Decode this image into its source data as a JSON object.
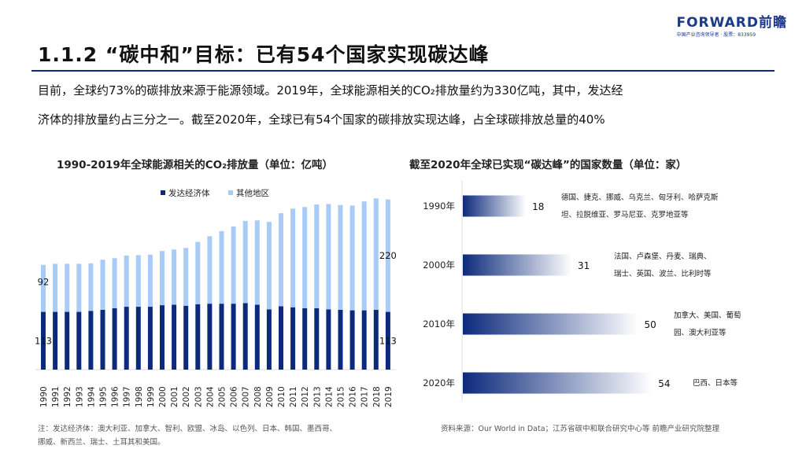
{
  "header": {
    "title": "1.1.2 “碳中和”目标：已有54个国家实现碳达峰",
    "logo_brand": "FORWARD前瞻",
    "logo_sub": "中国产业咨询领导者 · 股票：833959"
  },
  "intro": {
    "line1": "目前，全球约73%的碳排放来源于能源领域。2019年，全球能源相关的CO₂排放量约为330亿吨，其中，发达经",
    "line2": "济体的排放量约占三分之一。截至2020年，全球已有54个国家的碳排放实现达峰，占全球碳排放总量的40%"
  },
  "chart_data": [
    {
      "type": "bar",
      "stacked": true,
      "title": "1990-2019年全球能源相关的CO₂排放量（单位：亿吨）",
      "legend_position": "top",
      "categories": [
        "1990",
        "1991",
        "1992",
        "1993",
        "1994",
        "1995",
        "1996",
        "1997",
        "1998",
        "1999",
        "2000",
        "2001",
        "2002",
        "2003",
        "2004",
        "2005",
        "2006",
        "2007",
        "2008",
        "2009",
        "2010",
        "2011",
        "2012",
        "2013",
        "2014",
        "2015",
        "2016",
        "2017",
        "2018",
        "2019"
      ],
      "series": [
        {
          "name": "发达经济体",
          "color": "#0c2a7c",
          "values": [
            113,
            113,
            113,
            113,
            115,
            117,
            120,
            123,
            123,
            123,
            126,
            127,
            125,
            128,
            129,
            129,
            129,
            130,
            127,
            118,
            124,
            122,
            120,
            120,
            118,
            117,
            116,
            116,
            117,
            113
          ]
        },
        {
          "name": "其他地区",
          "color": "#a9cbf7",
          "values": [
            92,
            94,
            94,
            94,
            93,
            98,
            98,
            100,
            101,
            102,
            106,
            108,
            113,
            122,
            132,
            142,
            151,
            161,
            165,
            171,
            182,
            193,
            198,
            203,
            206,
            205,
            205,
            213,
            218,
            220
          ]
        }
      ],
      "data_labels": [
        {
          "category": "1990",
          "series": "发达经济体",
          "text": "113"
        },
        {
          "category": "1990",
          "series": "其他地区",
          "text": "92"
        },
        {
          "category": "2019",
          "series": "发达经济体",
          "text": "113"
        },
        {
          "category": "2019",
          "series": "其他地区",
          "text": "220"
        }
      ]
    },
    {
      "type": "bar",
      "orientation": "horizontal",
      "title": "截至2020年全球已实现“碳达峰”的国家数量（单位：家）",
      "color": "#0c2a7c",
      "categories": [
        "1990年",
        "2000年",
        "2010年",
        "2020年"
      ],
      "values": [
        18,
        31,
        50,
        54
      ],
      "annotations": [
        [
          "德国、捷克、挪威、乌克兰、匈牙利、哈萨克斯",
          "坦、拉脱维亚、罗马尼亚、克罗地亚等"
        ],
        [
          "法国、卢森堡、丹麦、瑞典、",
          "瑞士、英国、波兰、比利时等"
        ],
        [
          "加拿大、美国、葡萄",
          "园、澳大利亚等"
        ],
        [
          "巴西、日本等"
        ]
      ]
    }
  ],
  "footer": {
    "note1": "注：发达经济体：澳大利亚、加拿大、智利、欧盟、冰岛、以色列、日本、韩国、墨西哥、",
    "note2": "挪威、新西兰、瑞士、土耳其和美国。",
    "source": "资料来源：Our World in Data；江苏省碳中和联合研究中心等 前瞻产业研究院整理"
  }
}
